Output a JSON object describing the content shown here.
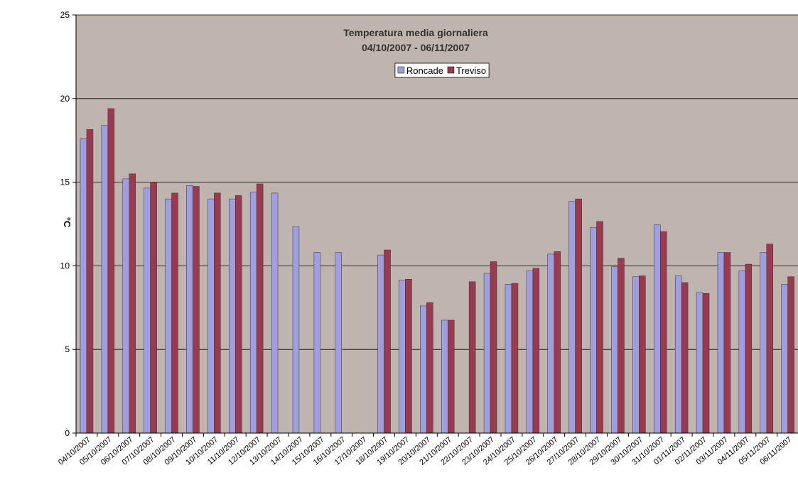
{
  "chart_data": {
    "type": "bar",
    "title": "Temperatura media giornaliera",
    "subtitle": "04/10/2007 - 06/11/2007",
    "y_label": "°C",
    "categories": [
      "04/10/2007",
      "05/10/2007",
      "06/10/2007",
      "07/10/2007",
      "08/10/2007",
      "09/10/2007",
      "10/10/2007",
      "11/10/2007",
      "12/10/2007",
      "13/10/2007",
      "14/10/2007",
      "15/10/2007",
      "16/10/2007",
      "17/10/2007",
      "18/10/2007",
      "19/10/2007",
      "20/10/2007",
      "21/10/2007",
      "22/10/2007",
      "23/10/2007",
      "24/10/2007",
      "25/10/2007",
      "26/10/2007",
      "27/10/2007",
      "28/10/2007",
      "29/10/2007",
      "30/10/2007",
      "31/10/2007",
      "01/11/2007",
      "02/11/2007",
      "03/11/2007",
      "04/11/2007",
      "05/11/2007",
      "06/11/2007"
    ],
    "series": [
      {
        "name": "Roncade",
        "color": "#9f9fdf",
        "values": [
          17.6,
          18.4,
          15.2,
          14.65,
          14.0,
          14.8,
          14.0,
          14.0,
          14.4,
          14.35,
          12.35,
          10.8,
          10.8,
          null,
          10.65,
          9.15,
          7.6,
          6.75,
          null,
          9.55,
          8.9,
          9.7,
          10.7,
          13.85,
          12.3,
          9.95,
          9.35,
          12.45,
          9.4,
          8.4,
          10.8,
          9.7,
          10.8,
          8.9
        ]
      },
      {
        "name": "Treviso",
        "color": "#9b3a4e",
        "values": [
          18.15,
          19.4,
          15.5,
          15.0,
          14.35,
          14.75,
          14.35,
          14.2,
          14.9,
          null,
          null,
          null,
          null,
          null,
          10.95,
          9.2,
          7.8,
          6.75,
          9.05,
          10.25,
          8.95,
          9.85,
          10.85,
          14.0,
          12.65,
          10.45,
          9.4,
          12.05,
          9.0,
          8.35,
          10.8,
          10.1,
          11.3,
          9.35
        ]
      }
    ],
    "ylim": [
      0,
      25
    ],
    "yticks": [
      0,
      5,
      10,
      15,
      20,
      25
    ],
    "grid": true,
    "legend": "top",
    "plot_background": "#c0b4ae"
  }
}
